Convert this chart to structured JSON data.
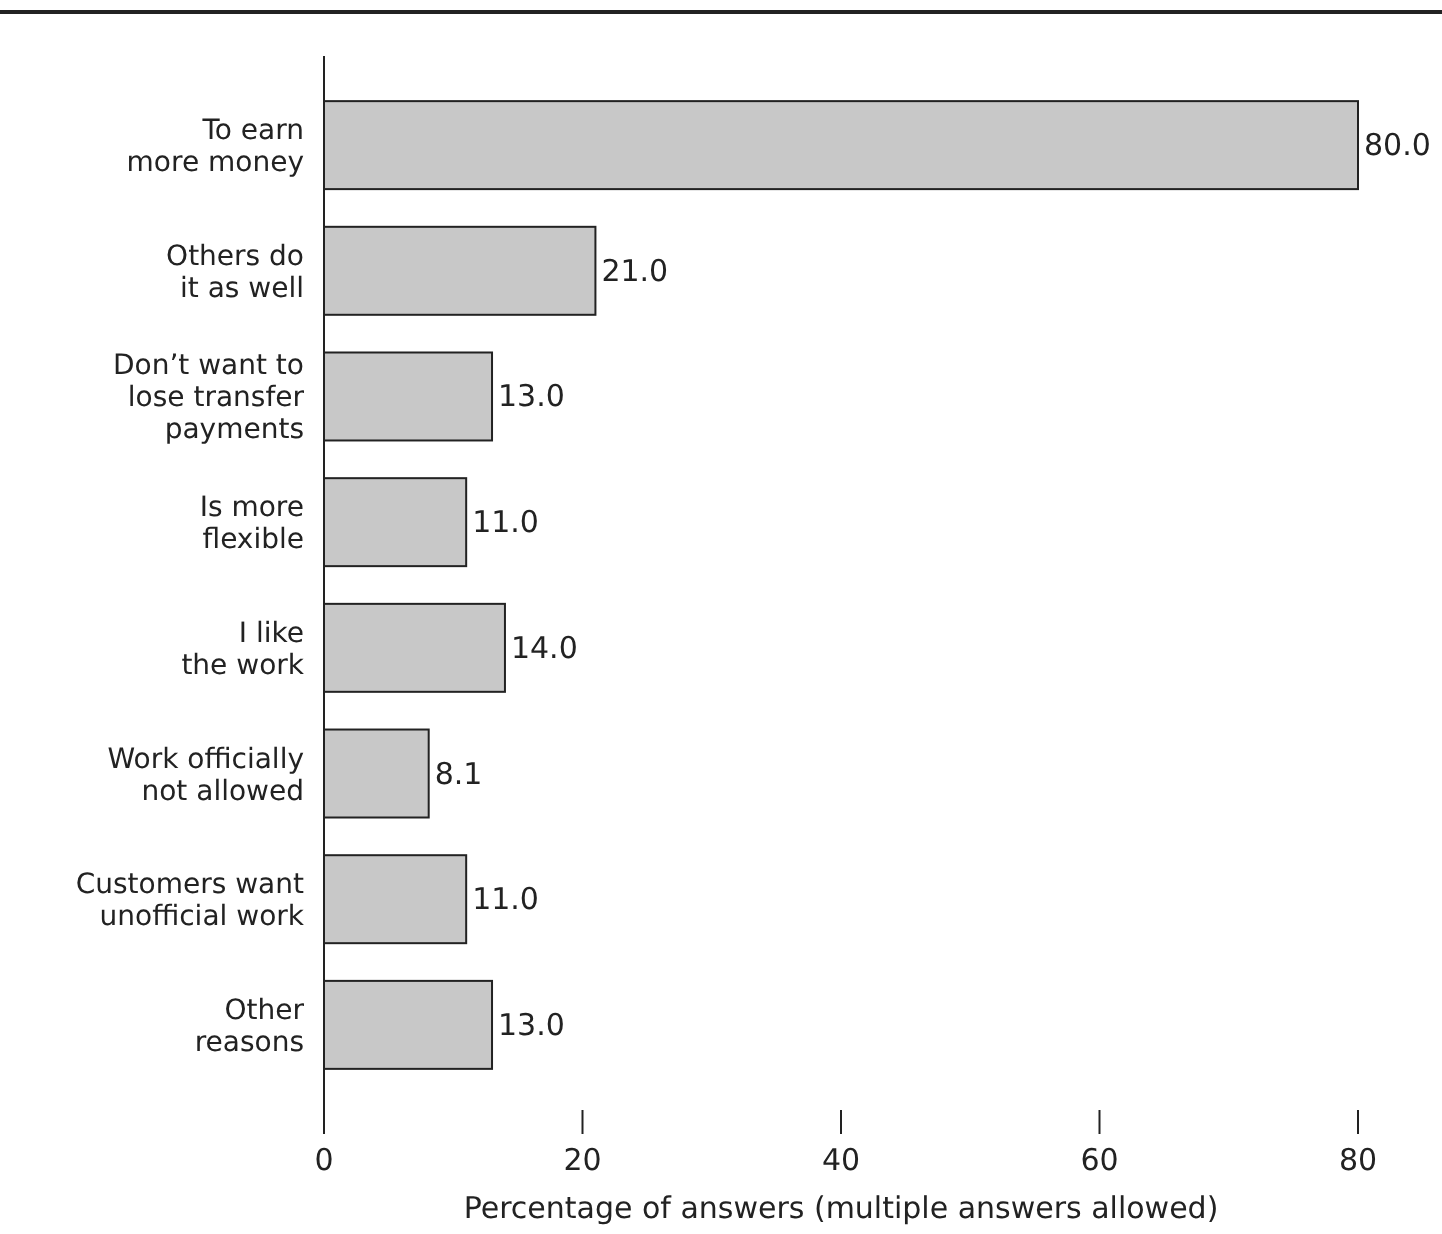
{
  "chart_data": {
    "type": "bar",
    "orientation": "horizontal",
    "xlabel": "Percentage of answers (multiple answers allowed)",
    "categories": [
      "To earn\nmore money",
      "Others do\nit as well",
      "Don’t want to\nlose transfer\npayments",
      "Is more\nflexible",
      "I like\nthe work",
      "Work officially\nnot allowed",
      "Customers want\nunofficial work",
      "Other\nreasons"
    ],
    "values": [
      80.0,
      21.0,
      13.0,
      11.0,
      14.0,
      8.1,
      11.0,
      13.0
    ],
    "value_labels": [
      "80.0",
      "21.0",
      "13.0",
      "11.0",
      "14.0",
      "8.1",
      "11.0",
      "13.0"
    ],
    "color": "#c8c8c8",
    "xlim": [
      0,
      80
    ],
    "xticks": [
      0,
      20,
      40,
      60,
      80
    ],
    "grid": false
  }
}
